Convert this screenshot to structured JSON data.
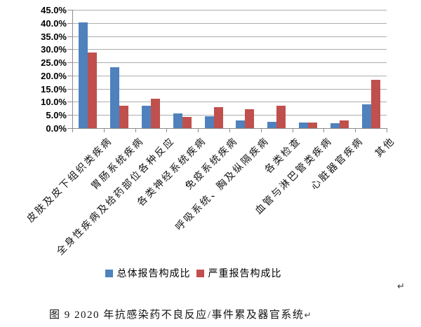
{
  "chart_data": {
    "type": "bar",
    "title": "",
    "categories": [
      "皮肤及皮下组织类疾病",
      "胃肠系统疾病",
      "全身性疾病及给药部位各种反应",
      "各类神经系统疾病",
      "免疫系统疾病",
      "呼吸系统、胸及纵隔疾病",
      "各类检查",
      "血管与淋巴管类疾病",
      "心脏器官疾病",
      "其他"
    ],
    "series": [
      {
        "name": "总体报告构成比",
        "color": "#4f81bd",
        "values": [
          40.2,
          23.2,
          8.4,
          5.5,
          4.4,
          2.9,
          2.5,
          2.2,
          1.8,
          9.0
        ]
      },
      {
        "name": "严重报告构成比",
        "color": "#c0504d",
        "values": [
          28.8,
          8.5,
          11.2,
          4.3,
          8.0,
          7.1,
          8.5,
          2.2,
          2.9,
          18.5
        ]
      }
    ],
    "xlabel": "",
    "ylabel": "",
    "ylim": [
      0,
      45
    ],
    "ytick_step": 5,
    "ytick_labels": [
      "45.0%",
      "40.0%",
      "35.0%",
      "30.0%",
      "25.0%",
      "20.0%",
      "15.0%",
      "10.0%",
      "5.0%",
      "0.0%"
    ],
    "grid": true,
    "legend_position": "bottom",
    "bar_style": {
      "grouped": true,
      "gap_between_groups": true
    }
  },
  "marks": {
    "after_legend": "↵"
  },
  "caption": {
    "text": "图 9  2020 年抗感染药不良反应/事件累及器官系统",
    "return_mark": "↵"
  }
}
